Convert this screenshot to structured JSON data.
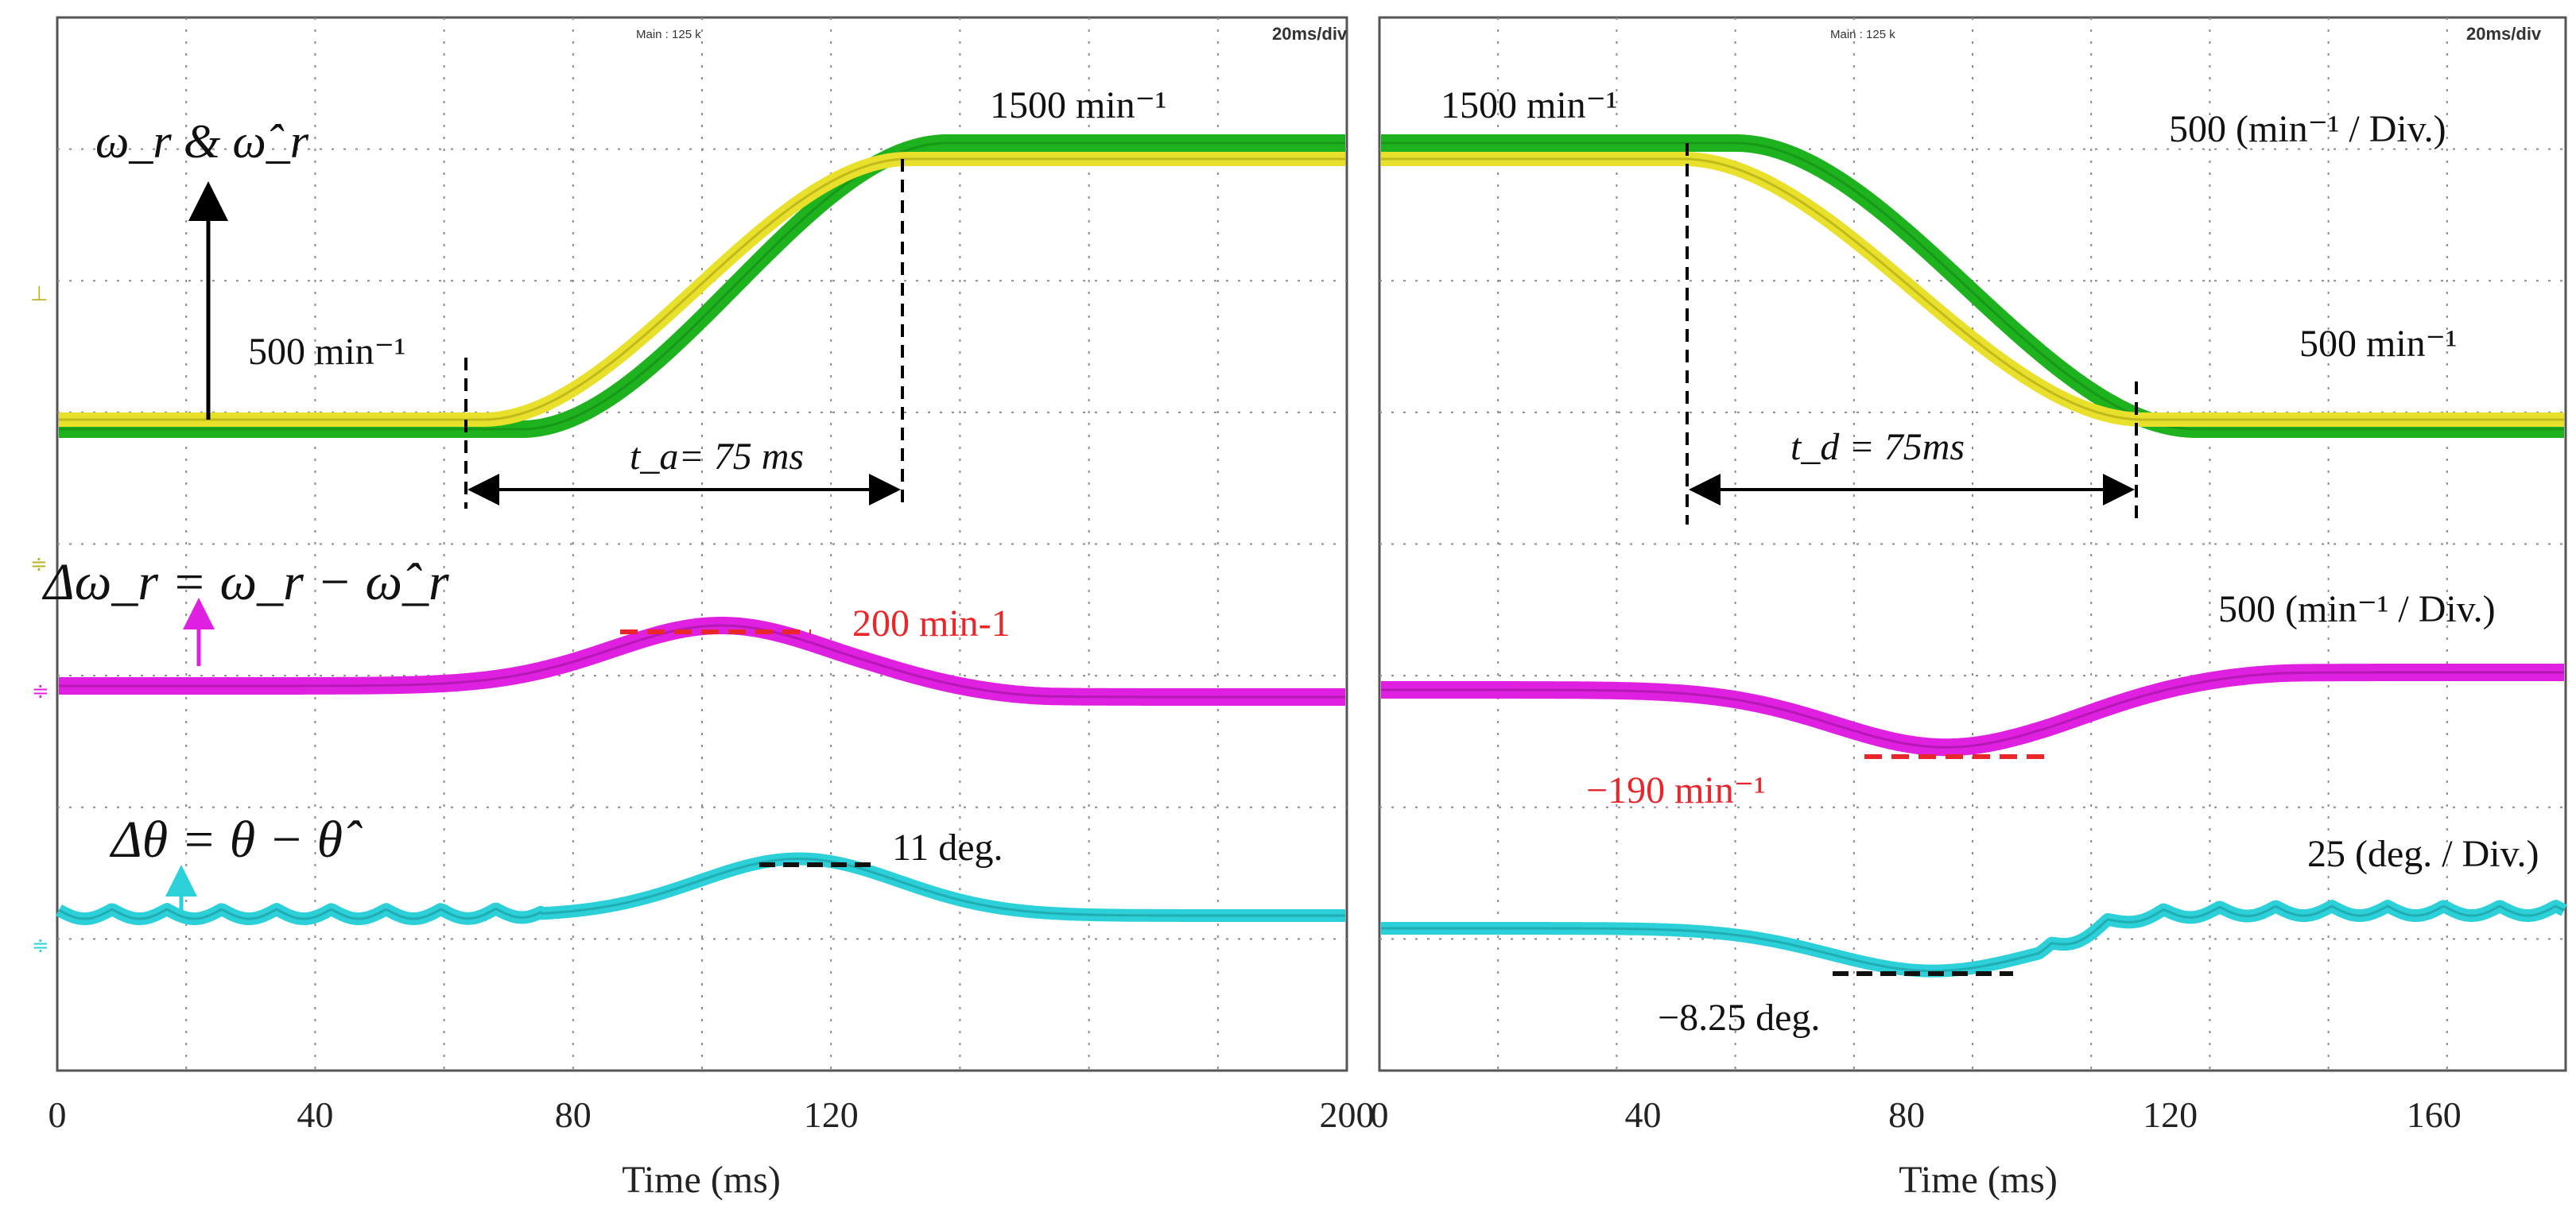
{
  "chart_data": [
    {
      "type": "line",
      "panel": "left",
      "header": "Main : 125 k",
      "timebase": "20ms/div",
      "xlabel": "Time (ms)",
      "xlim": [
        0,
        200
      ],
      "x_ticks": [
        "0",
        "40",
        "80",
        "120",
        "200"
      ],
      "x_tick_values": [
        0,
        40,
        80,
        120,
        200
      ],
      "traces": {
        "speed": {
          "label": "ω_r & ω̂_r",
          "start_speed_label": "500 min⁻¹",
          "end_speed_label": "1500 min⁻¹",
          "from_speed": 500,
          "to_speed": 1500,
          "ramp_start_ms": 66,
          "ramp_end_ms": 132,
          "estimated_lag_ms": 6,
          "time_marker": "t_a= 75 ms"
        },
        "speed_error": {
          "label": "Δω_r = ω_r − ω̂_r",
          "peak_label": "200 min-1",
          "peak_value": 200,
          "peak_center_ms": 103
        },
        "angle_error": {
          "label": "Δθ = θ − θ̂",
          "peak_label": "11 deg.",
          "peak_value": 11,
          "peak_center_ms": 115
        }
      }
    },
    {
      "type": "line",
      "panel": "right",
      "header": "Main : 125 k",
      "timebase": "20ms/div",
      "xlabel": "Time (ms)",
      "xlim": [
        0,
        180
      ],
      "x_ticks": [
        "0",
        "40",
        "80",
        "120",
        "160"
      ],
      "x_tick_values": [
        0,
        40,
        80,
        120,
        160
      ],
      "traces": {
        "speed": {
          "start_speed_label": "1500 min⁻¹",
          "end_speed_label": "500 min⁻¹",
          "scale_label": "500 (min⁻¹ / Div.)",
          "from_speed": 1500,
          "to_speed": 500,
          "ramp_start_ms": 46,
          "ramp_end_ms": 116,
          "estimated_lag_ms": 8,
          "time_marker": "t_d = 75ms"
        },
        "speed_error": {
          "scale_label": "500 (min⁻¹ / Div.)",
          "peak_label": "−190 min⁻¹",
          "peak_value": -190,
          "peak_center_ms": 86
        },
        "angle_error": {
          "scale_label": "25 (deg. / Div.)",
          "peak_label": "−8.25 deg.",
          "peak_value": -8.25,
          "peak_center_ms": 84
        }
      }
    }
  ],
  "colors": {
    "actual_speed": "#1fb21f",
    "estimated_speed": "#e8e02a",
    "speed_error": "#e020e0",
    "angle_error": "#2cd0d8",
    "annotation_red": "#e8262b",
    "grid": "#8a8a8a"
  }
}
